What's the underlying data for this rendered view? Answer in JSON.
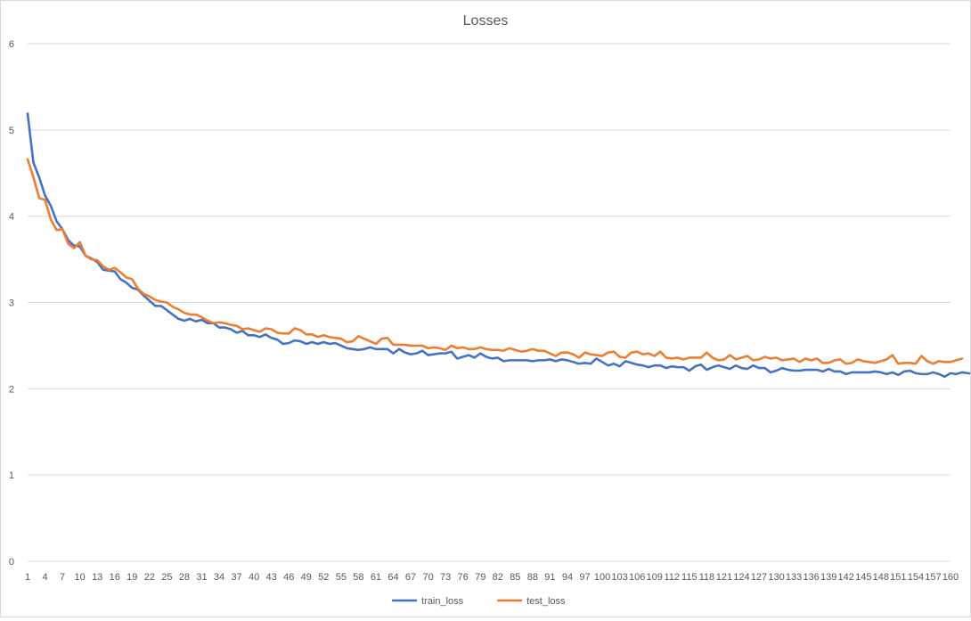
{
  "chart_data": {
    "type": "line",
    "title": "Losses",
    "xlabel": "",
    "ylabel": "",
    "ylim": [
      0,
      6
    ],
    "yticks": [
      0,
      1,
      2,
      3,
      4,
      5,
      6
    ],
    "x_tick_labels": [
      "1",
      "4",
      "7",
      "10",
      "13",
      "16",
      "19",
      "22",
      "25",
      "28",
      "31",
      "34",
      "37",
      "40",
      "43",
      "46",
      "49",
      "52",
      "55",
      "58",
      "61",
      "64",
      "67",
      "70",
      "73",
      "76",
      "79",
      "82",
      "85",
      "88",
      "91",
      "94",
      "97",
      "100",
      "103",
      "106",
      "109",
      "112",
      "115",
      "118",
      "121",
      "124",
      "127",
      "130",
      "133",
      "136",
      "139",
      "142",
      "145",
      "148",
      "151",
      "154",
      "157",
      "160"
    ],
    "x_range": [
      1,
      160
    ],
    "grid": "horizontal",
    "legend_position": "bottom",
    "colors": {
      "train_loss": "#4472c4",
      "test_loss": "#ed7d31",
      "grid": "#d9d9d9",
      "text": "#595959"
    },
    "series": [
      {
        "name": "train_loss",
        "color": "#4472c4",
        "values": [
          5.19,
          4.62,
          4.45,
          4.24,
          4.12,
          3.94,
          3.85,
          3.72,
          3.66,
          3.65,
          3.54,
          3.51,
          3.47,
          3.38,
          3.37,
          3.36,
          3.27,
          3.23,
          3.17,
          3.15,
          3.08,
          3.02,
          2.96,
          2.96,
          2.91,
          2.86,
          2.81,
          2.79,
          2.81,
          2.78,
          2.8,
          2.76,
          2.76,
          2.71,
          2.71,
          2.69,
          2.65,
          2.67,
          2.62,
          2.62,
          2.6,
          2.63,
          2.59,
          2.57,
          2.52,
          2.53,
          2.56,
          2.55,
          2.52,
          2.54,
          2.52,
          2.54,
          2.52,
          2.53,
          2.5,
          2.47,
          2.46,
          2.45,
          2.46,
          2.48,
          2.46,
          2.46,
          2.46,
          2.41,
          2.46,
          2.42,
          2.4,
          2.41,
          2.44,
          2.39,
          2.4,
          2.41,
          2.41,
          2.43,
          2.35,
          2.37,
          2.39,
          2.36,
          2.41,
          2.37,
          2.35,
          2.36,
          2.32,
          2.33,
          2.33,
          2.33,
          2.33,
          2.32,
          2.33,
          2.33,
          2.34,
          2.32,
          2.34,
          2.33,
          2.31,
          2.29,
          2.3,
          2.29,
          2.35,
          2.31,
          2.27,
          2.29,
          2.26,
          2.32,
          2.3,
          2.28,
          2.27,
          2.25,
          2.27,
          2.27,
          2.24,
          2.26,
          2.25,
          2.25,
          2.21,
          2.26,
          2.28,
          2.22,
          2.25,
          2.27,
          2.25,
          2.23,
          2.27,
          2.24,
          2.23,
          2.27,
          2.24,
          2.24,
          2.19,
          2.21,
          2.24,
          2.22,
          2.21,
          2.21,
          2.22,
          2.22,
          2.22,
          2.2,
          2.23,
          2.2,
          2.2,
          2.17,
          2.19,
          2.19,
          2.19,
          2.19,
          2.2,
          2.19,
          2.17,
          2.19,
          2.16,
          2.2,
          2.21,
          2.18,
          2.17,
          2.17,
          2.19,
          2.17,
          2.14,
          2.18,
          2.17,
          2.19,
          2.18,
          2.17
        ]
      },
      {
        "name": "test_loss",
        "color": "#ed7d31",
        "values": [
          4.66,
          4.45,
          4.21,
          4.19,
          3.96,
          3.84,
          3.85,
          3.68,
          3.63,
          3.7,
          3.54,
          3.5,
          3.49,
          3.42,
          3.38,
          3.4,
          3.35,
          3.29,
          3.27,
          3.16,
          3.1,
          3.07,
          3.03,
          3.01,
          3.0,
          2.95,
          2.92,
          2.88,
          2.86,
          2.86,
          2.83,
          2.79,
          2.76,
          2.77,
          2.76,
          2.74,
          2.73,
          2.69,
          2.7,
          2.68,
          2.66,
          2.7,
          2.69,
          2.65,
          2.64,
          2.64,
          2.7,
          2.68,
          2.63,
          2.63,
          2.6,
          2.62,
          2.6,
          2.59,
          2.58,
          2.54,
          2.55,
          2.61,
          2.58,
          2.55,
          2.52,
          2.58,
          2.59,
          2.51,
          2.51,
          2.51,
          2.5,
          2.5,
          2.5,
          2.47,
          2.48,
          2.47,
          2.45,
          2.5,
          2.47,
          2.48,
          2.46,
          2.46,
          2.48,
          2.46,
          2.45,
          2.45,
          2.44,
          2.47,
          2.45,
          2.43,
          2.44,
          2.46,
          2.44,
          2.44,
          2.41,
          2.38,
          2.42,
          2.42,
          2.4,
          2.36,
          2.42,
          2.4,
          2.39,
          2.38,
          2.42,
          2.43,
          2.37,
          2.36,
          2.42,
          2.43,
          2.4,
          2.41,
          2.38,
          2.43,
          2.36,
          2.35,
          2.36,
          2.34,
          2.36,
          2.36,
          2.36,
          2.42,
          2.36,
          2.33,
          2.34,
          2.39,
          2.34,
          2.36,
          2.38,
          2.33,
          2.34,
          2.37,
          2.35,
          2.36,
          2.33,
          2.34,
          2.35,
          2.31,
          2.35,
          2.33,
          2.35,
          2.3,
          2.3,
          2.33,
          2.34,
          2.29,
          2.3,
          2.34,
          2.32,
          2.31,
          2.3,
          2.32,
          2.34,
          2.39,
          2.29,
          2.3,
          2.3,
          2.29,
          2.38,
          2.32,
          2.29,
          2.32,
          2.31,
          2.31,
          2.33,
          2.35
        ]
      }
    ]
  }
}
